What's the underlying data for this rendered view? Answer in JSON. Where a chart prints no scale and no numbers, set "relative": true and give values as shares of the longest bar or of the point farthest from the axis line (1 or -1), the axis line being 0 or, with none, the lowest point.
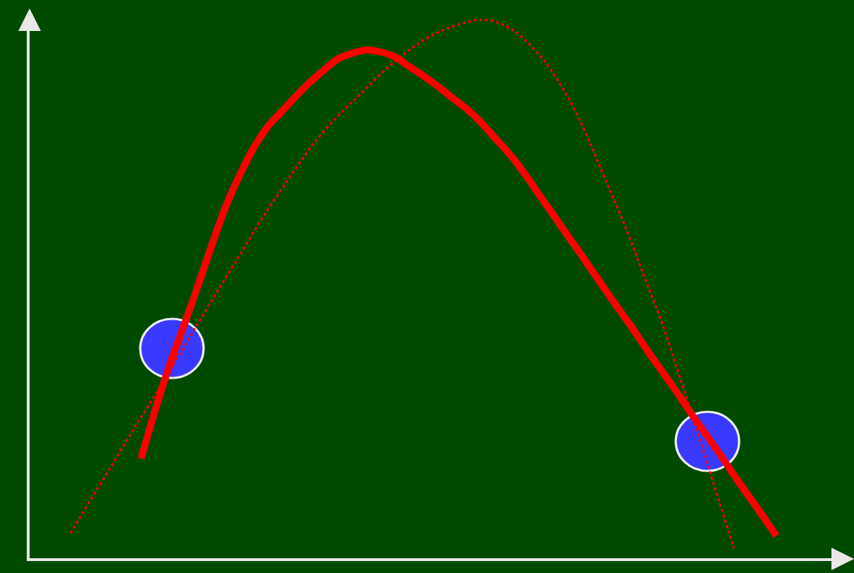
{
  "chart_data": {
    "type": "line",
    "relative": true,
    "categories": [
      null,
      null,
      null,
      null,
      null,
      null,
      null,
      null,
      null,
      null,
      null,
      null,
      null,
      null,
      null,
      null,
      null,
      null,
      null,
      null,
      null,
      null,
      null,
      null,
      null,
      null,
      null,
      null,
      null,
      null,
      null,
      null,
      null,
      null,
      null,
      null,
      null,
      null,
      null,
      null,
      null,
      null,
      null,
      null,
      null,
      null,
      null,
      null,
      null,
      null,
      null,
      null,
      null,
      null,
      null,
      null,
      null,
      null
    ],
    "series": [
      {
        "type": "line",
        "color": "#ff0000",
        "line_style": "solid",
        "marker": "none",
        "values": [
          null,
          null,
          null,
          null,
          null,
          null,
          null,
          null,
          0.187,
          0.277,
          0.359,
          0.431,
          0.505,
          0.582,
          0.654,
          0.713,
          0.764,
          0.803,
          0.831,
          0.859,
          0.885,
          0.908,
          0.928,
          0.938,
          0.944,
          0.94,
          0.931,
          0.913,
          0.896,
          0.877,
          0.856,
          0.836,
          0.812,
          0.783,
          0.754,
          0.721,
          0.683,
          0.646,
          0.608,
          0.571,
          0.533,
          0.495,
          0.458,
          0.421,
          0.382,
          0.345,
          0.308,
          0.269,
          0.232,
          0.195,
          0.156,
          0.119,
          0.082,
          0.044,
          null,
          null,
          null,
          null
        ]
      },
      {
        "type": "line",
        "color": "#ff0000",
        "line_style": "dotted",
        "marker": "none",
        "values": [
          null,
          null,
          null,
          0.049,
          0.092,
          0.135,
          0.177,
          0.221,
          0.263,
          0.305,
          0.349,
          0.392,
          0.436,
          0.479,
          0.522,
          0.564,
          0.608,
          0.649,
          0.688,
          0.726,
          0.763,
          0.795,
          0.823,
          0.849,
          0.874,
          0.9,
          0.923,
          0.944,
          0.962,
          0.976,
          0.987,
          0.995,
          1.0,
          0.997,
          0.986,
          0.967,
          0.941,
          0.908,
          0.867,
          0.818,
          0.759,
          0.697,
          0.636,
          0.569,
          0.5,
          0.431,
          0.351,
          0.269,
          0.187,
          0.103,
          0.021,
          null,
          null,
          null,
          null,
          null,
          null,
          null
        ]
      }
    ]
  }
}
